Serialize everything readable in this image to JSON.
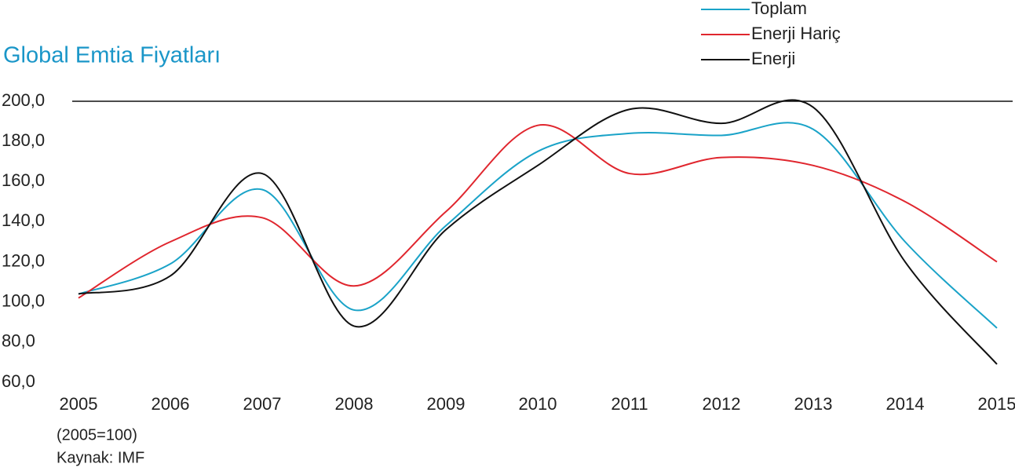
{
  "chart_data": {
    "type": "line",
    "title": "Global Emtia Fiyatları",
    "notes": [
      "(2005=100)",
      "Kaynak: IMF"
    ],
    "categories": [
      "2005",
      "2006",
      "2007",
      "2008",
      "2009",
      "2010",
      "2011",
      "2012",
      "2013",
      "2014",
      "2015"
    ],
    "series": [
      {
        "name": "Toplam",
        "color": "#1aa3c8",
        "values": [
          104,
          119,
          156,
          96,
          138,
          175,
          184,
          183,
          186,
          130,
          87
        ]
      },
      {
        "name": "Enerji Hariç",
        "color": "#e0262e",
        "values": [
          102,
          130,
          142,
          108,
          145,
          188,
          164,
          172,
          168,
          150,
          120
        ]
      },
      {
        "name": "Enerji",
        "color": "#111111",
        "values": [
          104,
          113,
          164,
          88,
          136,
          168,
          196,
          189,
          197,
          120,
          69
        ]
      }
    ],
    "ylim": [
      60,
      200
    ],
    "yticks": [
      {
        "value": 60,
        "label": "60,0"
      },
      {
        "value": 80,
        "label": "80,0"
      },
      {
        "value": 100,
        "label": "100,0"
      },
      {
        "value": 120,
        "label": "120,0"
      },
      {
        "value": 140,
        "label": "140,0"
      },
      {
        "value": 160,
        "label": "160,0"
      },
      {
        "value": 180,
        "label": "180,0"
      },
      {
        "value": 200,
        "label": "200,0"
      }
    ],
    "legend": "top-right"
  }
}
